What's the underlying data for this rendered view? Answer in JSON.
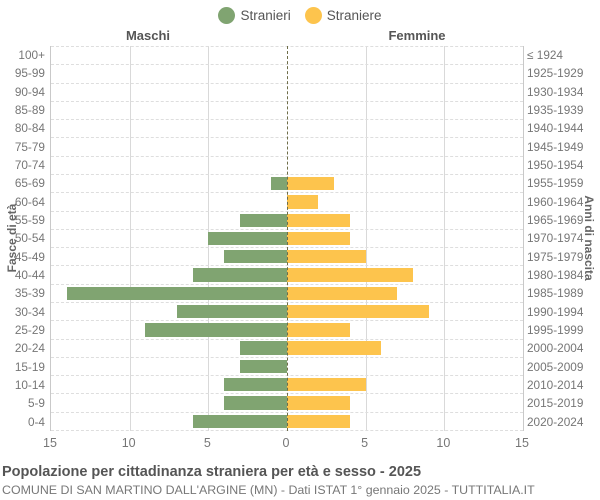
{
  "legend": {
    "items": [
      {
        "label": "Stranieri",
        "color": "#80a471"
      },
      {
        "label": "Straniere",
        "color": "#fdc44d"
      }
    ]
  },
  "headers": {
    "left": "Maschi",
    "right": "Femmine"
  },
  "axis": {
    "left_title": "Fasce di età",
    "right_title": "Anni di nascita",
    "x_tick_labels": [
      "15",
      "10",
      "5",
      "0",
      "5",
      "10",
      "15"
    ]
  },
  "footer": {
    "title": "Popolazione per cittadinanza straniera per età e sesso - 2025",
    "subtitle": "COMUNE DI SAN MARTINO DALL'ARGINE (MN) - Dati ISTAT 1° gennaio 2025 - TUTTITALIA.IT"
  },
  "chart_data": {
    "type": "bar",
    "variant": "population-pyramid",
    "title": "Popolazione per cittadinanza straniera per età e sesso - 2025",
    "xlabel": "",
    "ylabel_left": "Fasce di età",
    "ylabel_right": "Anni di nascita",
    "xlim": [
      0,
      15
    ],
    "x_gridline_step": 5,
    "grid": true,
    "legend_position": "top",
    "categories": [
      "100+",
      "95-99",
      "90-94",
      "85-89",
      "80-84",
      "75-79",
      "70-74",
      "65-69",
      "60-64",
      "55-59",
      "50-54",
      "45-49",
      "40-44",
      "35-39",
      "30-34",
      "25-29",
      "20-24",
      "15-19",
      "10-14",
      "5-9",
      "0-4"
    ],
    "birth_year_labels": [
      "≤ 1924",
      "1925-1929",
      "1930-1934",
      "1935-1939",
      "1940-1944",
      "1945-1949",
      "1950-1954",
      "1955-1959",
      "1960-1964",
      "1965-1969",
      "1970-1974",
      "1975-1979",
      "1980-1984",
      "1985-1989",
      "1990-1994",
      "1995-1999",
      "2000-2004",
      "2005-2009",
      "2010-2014",
      "2015-2019",
      "2020-2024"
    ],
    "series": [
      {
        "name": "Stranieri",
        "side": "left",
        "color": "#80a471",
        "values": [
          0,
          0,
          0,
          0,
          0,
          0,
          0,
          1,
          0,
          3,
          5,
          4,
          6,
          14,
          7,
          9,
          3,
          3,
          4,
          4,
          6
        ]
      },
      {
        "name": "Straniere",
        "side": "right",
        "color": "#fdc44d",
        "values": [
          0,
          0,
          0,
          0,
          0,
          0,
          0,
          3,
          2,
          4,
          4,
          5,
          8,
          7,
          9,
          4,
          6,
          0,
          5,
          4,
          4
        ]
      }
    ]
  }
}
